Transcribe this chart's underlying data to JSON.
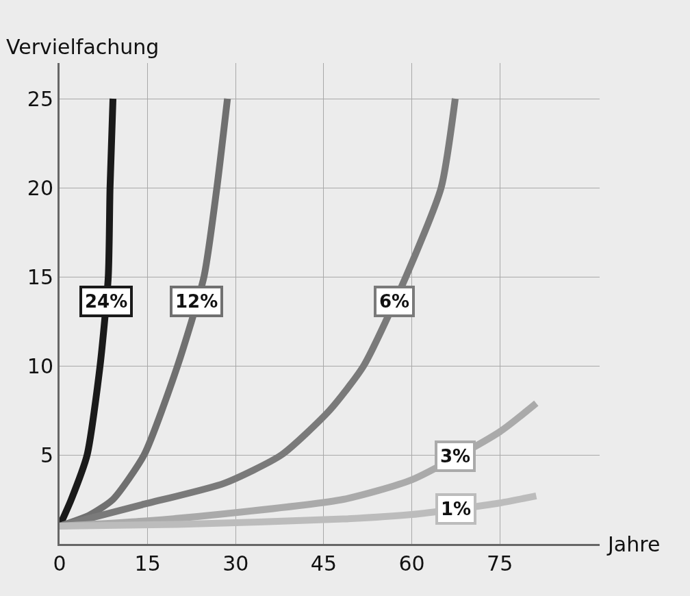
{
  "chart_data": {
    "type": "line",
    "xlabel": "Jahre",
    "ylabel": "Vervielfachung",
    "xlim": [
      0,
      92
    ],
    "xticks": [
      0,
      15,
      30,
      45,
      60,
      75
    ],
    "ylim": [
      0,
      27
    ],
    "yticks": [
      5,
      10,
      15,
      20,
      25
    ],
    "grid": true,
    "legend": false,
    "marker": "none",
    "line_style": "solid",
    "series": [
      {
        "name": "24%",
        "color": "#1a1a1a",
        "x": [
          0,
          2,
          4.7,
          6.9,
          8.3,
          8.6,
          9.1
        ],
        "values": [
          1,
          2.5,
          5,
          10,
          15,
          20,
          25
        ]
      },
      {
        "name": "12%",
        "color": "#707070",
        "x": [
          0,
          5,
          9.1,
          14.4,
          20.1,
          24.6,
          26.8,
          28.6
        ],
        "values": [
          1,
          1.6,
          2.5,
          5,
          10,
          15,
          20,
          25
        ]
      },
      {
        "name": "6%",
        "color": "#7a7a7a",
        "x": [
          0,
          14,
          28,
          37.8,
          46,
          51.8,
          59,
          65,
          67.4
        ],
        "values": [
          1,
          2.2,
          3.4,
          5,
          7.5,
          10,
          15,
          20,
          25
        ]
      },
      {
        "name": "3%",
        "color": "#aaaaaa",
        "x": [
          0,
          15,
          28.4,
          48.3,
          60,
          75,
          81.2
        ],
        "values": [
          1,
          1.3,
          1.7,
          2.5,
          3.6,
          6.3,
          7.9
        ]
      },
      {
        "name": "1%",
        "color": "#bcbcbc",
        "x": [
          0,
          20,
          48.3,
          60,
          75,
          81.2
        ],
        "values": [
          1,
          1.1,
          1.4,
          1.65,
          2.3,
          2.7
        ]
      }
    ]
  }
}
